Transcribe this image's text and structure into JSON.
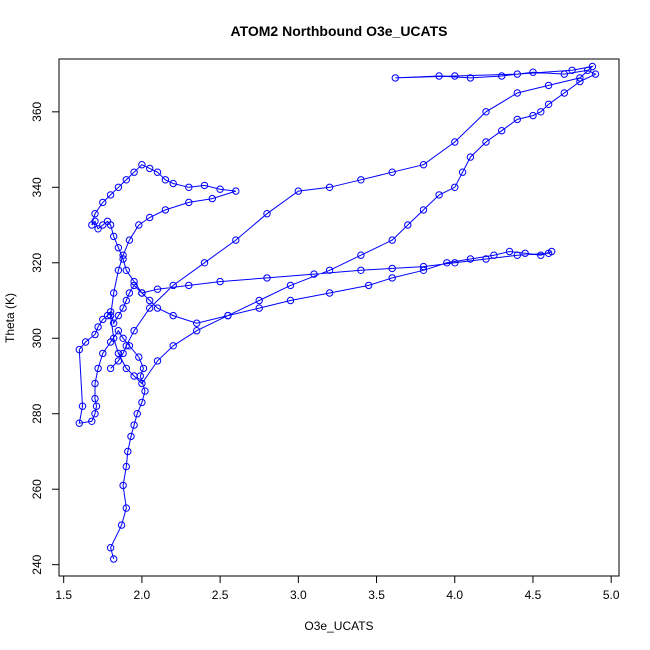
{
  "chart_data": {
    "type": "scatter",
    "title": "ATOM2 Northbound O3e_UCATS",
    "xlabel": "O3e_UCATS",
    "ylabel": "Theta (K)",
    "xlim": [
      1.47,
      5.05
    ],
    "ylim": [
      237,
      374
    ],
    "x_ticks": [
      1.5,
      2.0,
      2.5,
      3.0,
      3.5,
      4.0,
      4.5,
      5.0
    ],
    "x_tick_labels": [
      "1.5",
      "2.0",
      "2.5",
      "3.0",
      "3.5",
      "4.0",
      "4.5",
      "5.0"
    ],
    "y_ticks": [
      240,
      260,
      280,
      300,
      320,
      340,
      360
    ],
    "y_tick_labels": [
      "240",
      "260",
      "280",
      "300",
      "320",
      "340",
      "360"
    ],
    "grid": false,
    "legend": "none",
    "marker": "open-circle",
    "connected": true,
    "color": "#0000ff",
    "series": [
      {
        "x": [
          1.82,
          1.8,
          1.87,
          1.9,
          1.88,
          1.9,
          1.91,
          1.93,
          1.95,
          1.97,
          2.0,
          2.02,
          1.99,
          2.01,
          1.98,
          1.92,
          1.88,
          1.85,
          1.8,
          1.75,
          1.72,
          1.7,
          1.7,
          1.71,
          1.7,
          1.68,
          1.6,
          1.62,
          1.6,
          1.64,
          1.7,
          1.72,
          1.75,
          1.78,
          1.8,
          1.82,
          1.85,
          1.88,
          1.9,
          1.92,
          1.95,
          2.0,
          2.05,
          2.1,
          2.2,
          2.35,
          2.55,
          2.75,
          2.95,
          3.2,
          3.45,
          3.6,
          3.8,
          3.95,
          4.1,
          4.25,
          4.35,
          4.45,
          4.55,
          4.62,
          4.6,
          4.4,
          4.2,
          4.0,
          3.8,
          3.6,
          3.4,
          3.1,
          2.8,
          2.5,
          2.3,
          2.1,
          2.0,
          1.95,
          1.9,
          1.88,
          1.85,
          1.82,
          1.8,
          1.78,
          1.75,
          1.72,
          1.7,
          1.68,
          1.7,
          1.75,
          1.8,
          1.85,
          1.9,
          1.95,
          2.0,
          2.05,
          2.1,
          2.15,
          2.2,
          2.3,
          2.4,
          2.5,
          2.6,
          2.45,
          2.3,
          2.15,
          2.05,
          1.98,
          1.92,
          1.88,
          1.85,
          1.82,
          1.8,
          1.82,
          1.85,
          1.9,
          1.95,
          2.0,
          2.1,
          2.2,
          2.35,
          2.55,
          2.75,
          2.95,
          3.2,
          3.4,
          3.6,
          3.7,
          3.8,
          3.9,
          4.0,
          4.05,
          4.1,
          4.2,
          4.3,
          4.4,
          4.5,
          4.55,
          4.6,
          4.7,
          4.8,
          4.9,
          4.85,
          4.7,
          4.5,
          4.3,
          4.1,
          3.9,
          3.62,
          4.0,
          4.4,
          4.75,
          4.88,
          4.8,
          4.6,
          4.4,
          4.2,
          4.0,
          3.8,
          3.6,
          3.4,
          3.2,
          3.0,
          2.8,
          2.6,
          2.4,
          2.2,
          2.05,
          1.95,
          1.9,
          1.88,
          1.85,
          1.8
        ],
        "y": [
          241.5,
          244.5,
          250.5,
          255.0,
          261.0,
          266.0,
          270.0,
          274.0,
          277.0,
          280.0,
          283.0,
          286.0,
          290.0,
          292.0,
          295.0,
          298.0,
          300.0,
          302.0,
          299.0,
          296.0,
          292.0,
          288.0,
          284.0,
          282.0,
          280.0,
          278.0,
          277.5,
          282.0,
          297.0,
          299.0,
          301.0,
          303.0,
          305.0,
          306.0,
          307.0,
          304.0,
          306.0,
          308.0,
          310.0,
          312.0,
          314.0,
          312.0,
          310.0,
          308.0,
          306.0,
          304.0,
          306.0,
          308.0,
          310.0,
          312.0,
          314.0,
          316.0,
          318.0,
          320.0,
          321.0,
          322.0,
          323.0,
          322.5,
          322.0,
          323.0,
          322.5,
          322.0,
          321.0,
          320.0,
          319.0,
          318.5,
          318.0,
          317.0,
          316.0,
          315.0,
          314.0,
          313.0,
          312.0,
          315.0,
          318.0,
          321.0,
          324.0,
          327.0,
          330.0,
          331.0,
          330.0,
          329.0,
          331.0,
          330.0,
          333.0,
          336.0,
          338.0,
          340.0,
          342.0,
          344.0,
          346.0,
          345.0,
          344.0,
          342.0,
          341.0,
          340.0,
          340.5,
          339.5,
          339.0,
          337.0,
          336.0,
          334.0,
          332.0,
          330.0,
          326.0,
          322.0,
          318.0,
          312.0,
          306.0,
          300.0,
          296.0,
          292.0,
          290.0,
          288.0,
          294.0,
          298.0,
          302.0,
          306.0,
          310.0,
          314.0,
          318.0,
          322.0,
          326.0,
          330.0,
          334.0,
          338.0,
          340.0,
          344.0,
          348.0,
          352.0,
          355.0,
          358.0,
          359.0,
          360.0,
          362.0,
          365.0,
          368.0,
          370.0,
          371.0,
          370.0,
          370.5,
          369.5,
          369.0,
          369.5,
          369.0,
          369.5,
          370.0,
          371.0,
          372.0,
          369.0,
          367.0,
          365.0,
          360.0,
          352.0,
          346.0,
          344.0,
          342.0,
          340.0,
          339.0,
          333.0,
          326.0,
          320.0,
          314.0,
          308.0,
          302.0,
          298.0,
          296.0,
          294.0,
          292.0
        ]
      }
    ]
  }
}
